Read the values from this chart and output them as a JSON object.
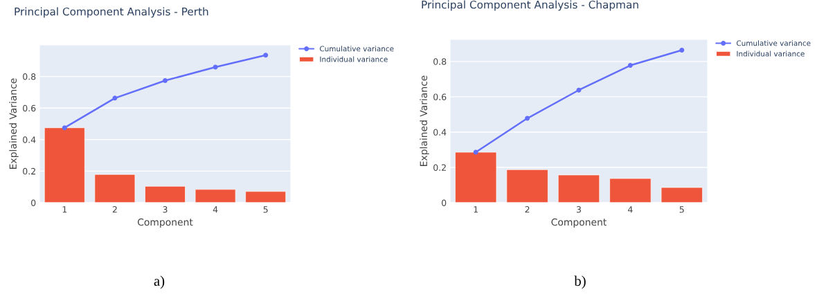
{
  "chart_data": [
    {
      "type": "bar",
      "title": "Principal Component Analysis - Perth",
      "xlabel": "Component",
      "ylabel": "Explained Variance",
      "categories": [
        "1",
        "2",
        "3",
        "4",
        "5"
      ],
      "series": [
        {
          "name": "Cumulative variance",
          "type": "line",
          "color": "#636efa",
          "marker": "circle",
          "values": [
            0.475,
            0.663,
            0.774,
            0.86,
            0.935
          ]
        },
        {
          "name": "Individual variance",
          "color": "#ef553b",
          "values": [
            0.475,
            0.179,
            0.104,
            0.084,
            0.071
          ]
        }
      ],
      "ylim": [
        0,
        1.0
      ],
      "yticks": [
        0,
        0.2,
        0.4,
        0.6,
        0.8
      ],
      "grid": "y",
      "legend": "top right",
      "annotations": [
        "a)"
      ]
    },
    {
      "type": "bar",
      "title": "Principal Component Analysis - Chapman",
      "xlabel": "Component",
      "ylabel": "Explained Variance",
      "categories": [
        "1",
        "2",
        "3",
        "4",
        "5"
      ],
      "series": [
        {
          "name": "Cumulative variance",
          "type": "line",
          "color": "#636efa",
          "marker": "circle",
          "values": [
            0.286,
            0.478,
            0.638,
            0.778,
            0.864
          ]
        },
        {
          "name": "Individual variance",
          "color": "#ef553b",
          "values": [
            0.286,
            0.187,
            0.157,
            0.137,
            0.086
          ]
        }
      ],
      "ylim": [
        0,
        0.925
      ],
      "yticks": [
        0,
        0.2,
        0.4,
        0.6,
        0.8
      ],
      "grid": "y",
      "legend": "top right",
      "annotations": [
        "b)"
      ]
    }
  ]
}
